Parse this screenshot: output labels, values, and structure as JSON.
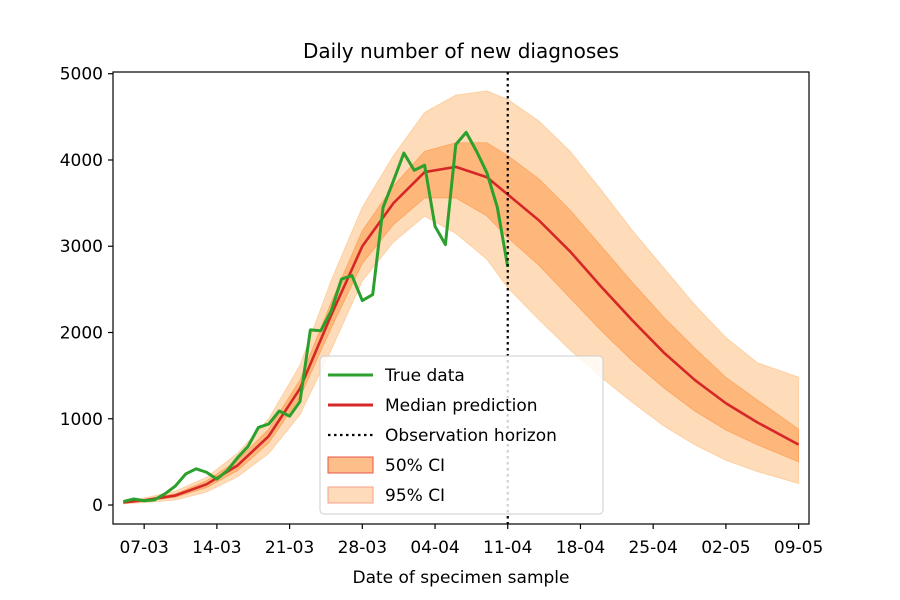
{
  "chart_data": {
    "type": "line",
    "title": "Daily number of new diagnoses",
    "xlabel": "Date of specimen sample",
    "ylabel": "",
    "x_axis": {
      "type": "date",
      "domain": [
        "2020-03-04",
        "2020-05-10"
      ],
      "ticks": [
        {
          "date": "2020-03-07",
          "label": "07-03"
        },
        {
          "date": "2020-03-14",
          "label": "14-03"
        },
        {
          "date": "2020-03-21",
          "label": "21-03"
        },
        {
          "date": "2020-03-28",
          "label": "28-03"
        },
        {
          "date": "2020-04-04",
          "label": "04-04"
        },
        {
          "date": "2020-04-11",
          "label": "11-04"
        },
        {
          "date": "2020-04-18",
          "label": "18-04"
        },
        {
          "date": "2020-04-25",
          "label": "25-04"
        },
        {
          "date": "2020-05-02",
          "label": "02-05"
        },
        {
          "date": "2020-05-09",
          "label": "09-05"
        }
      ]
    },
    "ylim": [
      -220,
      5020
    ],
    "yticks": [
      0,
      1000,
      2000,
      3000,
      4000,
      5000
    ],
    "grid": false,
    "legend": {
      "position": "lower-center",
      "entries": [
        {
          "key": "true",
          "label": "True data"
        },
        {
          "key": "median",
          "label": "Median prediction"
        },
        {
          "key": "horizon",
          "label": "Observation horizon"
        },
        {
          "key": "ci50",
          "label": "50% CI"
        },
        {
          "key": "ci95",
          "label": "95% CI"
        }
      ]
    },
    "colors": {
      "true": "#2ca02c",
      "median": "#d62728",
      "horizon": "#000000",
      "ci50": "#fdae6b",
      "ci50_edge": "#fd8d3c",
      "ci95": "#fdd0a2"
    },
    "observation_horizon": "2020-04-11",
    "series": [
      {
        "name": "True data",
        "x": [
          "2020-03-05",
          "2020-03-06",
          "2020-03-07",
          "2020-03-08",
          "2020-03-09",
          "2020-03-10",
          "2020-03-11",
          "2020-03-12",
          "2020-03-13",
          "2020-03-14",
          "2020-03-15",
          "2020-03-16",
          "2020-03-17",
          "2020-03-18",
          "2020-03-19",
          "2020-03-20",
          "2020-03-21",
          "2020-03-22",
          "2020-03-23",
          "2020-03-24",
          "2020-03-25",
          "2020-03-26",
          "2020-03-27",
          "2020-03-28",
          "2020-03-29",
          "2020-03-30",
          "2020-03-31",
          "2020-04-01",
          "2020-04-02",
          "2020-04-03",
          "2020-04-04",
          "2020-04-05",
          "2020-04-06",
          "2020-04-07",
          "2020-04-08",
          "2020-04-09",
          "2020-04-10",
          "2020-04-11"
        ],
        "y": [
          40,
          70,
          50,
          60,
          130,
          220,
          360,
          420,
          380,
          300,
          400,
          550,
          680,
          900,
          940,
          1090,
          1030,
          1200,
          2030,
          2020,
          2250,
          2620,
          2660,
          2370,
          2440,
          3450,
          3760,
          4080,
          3880,
          3940,
          3230,
          3020,
          4180,
          4320,
          4100,
          3850,
          3450,
          2760
        ]
      },
      {
        "name": "Median prediction",
        "x": [
          "2020-03-05",
          "2020-03-07",
          "2020-03-10",
          "2020-03-13",
          "2020-03-16",
          "2020-03-19",
          "2020-03-22",
          "2020-03-25",
          "2020-03-28",
          "2020-03-31",
          "2020-04-03",
          "2020-04-06",
          "2020-04-09",
          "2020-04-11",
          "2020-04-14",
          "2020-04-17",
          "2020-04-20",
          "2020-04-23",
          "2020-04-26",
          "2020-04-29",
          "2020-05-02",
          "2020-05-05",
          "2020-05-09"
        ],
        "y": [
          30,
          55,
          110,
          240,
          460,
          800,
          1350,
          2200,
          3000,
          3500,
          3860,
          3920,
          3800,
          3600,
          3300,
          2940,
          2530,
          2140,
          1770,
          1450,
          1180,
          960,
          700
        ]
      },
      {
        "name": "50% CI",
        "x": [
          "2020-03-05",
          "2020-03-07",
          "2020-03-10",
          "2020-03-13",
          "2020-03-16",
          "2020-03-19",
          "2020-03-22",
          "2020-03-25",
          "2020-03-28",
          "2020-03-31",
          "2020-04-03",
          "2020-04-06",
          "2020-04-09",
          "2020-04-11",
          "2020-04-14",
          "2020-04-17",
          "2020-04-20",
          "2020-04-23",
          "2020-04-26",
          "2020-04-29",
          "2020-05-02",
          "2020-05-05",
          "2020-05-09"
        ],
        "lower": [
          25,
          45,
          90,
          200,
          400,
          720,
          1250,
          2050,
          2800,
          3250,
          3560,
          3560,
          3350,
          3100,
          2780,
          2400,
          2020,
          1670,
          1360,
          1090,
          870,
          700,
          500
        ],
        "upper": [
          35,
          65,
          130,
          280,
          520,
          880,
          1450,
          2350,
          3180,
          3700,
          4100,
          4200,
          4200,
          4050,
          3780,
          3420,
          3000,
          2580,
          2180,
          1820,
          1480,
          1220,
          880
        ]
      },
      {
        "name": "95% CI",
        "x": [
          "2020-03-05",
          "2020-03-07",
          "2020-03-10",
          "2020-03-13",
          "2020-03-16",
          "2020-03-19",
          "2020-03-22",
          "2020-03-25",
          "2020-03-28",
          "2020-03-31",
          "2020-04-03",
          "2020-04-06",
          "2020-04-09",
          "2020-04-11",
          "2020-04-14",
          "2020-04-17",
          "2020-04-20",
          "2020-04-23",
          "2020-04-26",
          "2020-04-29",
          "2020-05-02",
          "2020-05-05",
          "2020-05-09"
        ],
        "lower": [
          15,
          30,
          60,
          150,
          330,
          600,
          1050,
          1800,
          2600,
          3050,
          3350,
          3150,
          2850,
          2520,
          2150,
          1800,
          1480,
          1190,
          920,
          700,
          520,
          390,
          250
        ],
        "upper": [
          45,
          80,
          160,
          320,
          600,
          1000,
          1620,
          2600,
          3450,
          4050,
          4550,
          4750,
          4800,
          4700,
          4450,
          4100,
          3650,
          3180,
          2750,
          2320,
          1940,
          1650,
          1480
        ]
      }
    ]
  }
}
